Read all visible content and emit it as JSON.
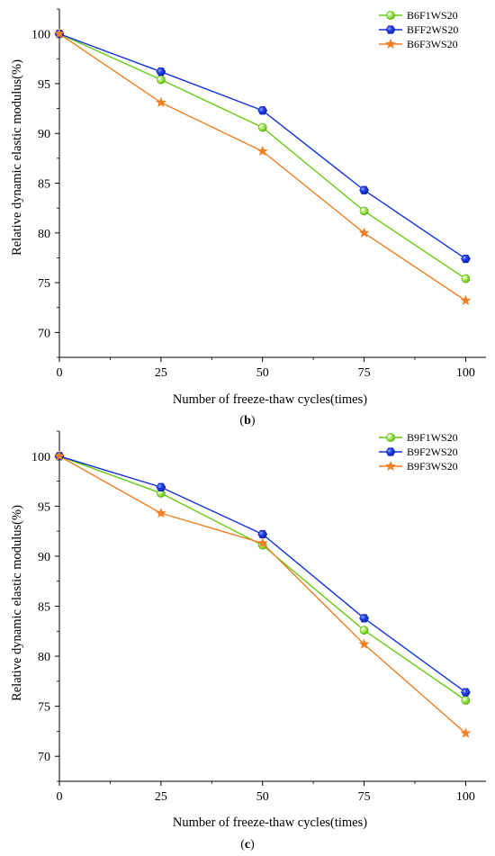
{
  "chart_data": [
    {
      "type": "line",
      "panel_label": "b",
      "xlabel": "Number of freeze-thaw cycles(times)",
      "ylabel": "Relative dynamic elastic modulus(%)",
      "x": [
        0,
        25,
        50,
        75,
        100
      ],
      "xlim": [
        0,
        105
      ],
      "ylim": [
        67.5,
        102.5
      ],
      "xticks": [
        0,
        25,
        50,
        75,
        100
      ],
      "yticks": [
        70,
        75,
        80,
        85,
        90,
        95,
        100
      ],
      "grid": false,
      "legend_position": "top-right",
      "series": [
        {
          "name": "B6F1WS20",
          "color": "#66cc11",
          "marker": "circle",
          "values": [
            100,
            95.4,
            90.6,
            82.2,
            75.4
          ]
        },
        {
          "name": "BFF2WS20",
          "color": "#1133dd",
          "marker": "hexagon",
          "values": [
            100,
            96.2,
            92.3,
            84.3,
            77.4
          ]
        },
        {
          "name": "B6F3WS20",
          "color": "#ee7f22",
          "marker": "star",
          "values": [
            100,
            93.1,
            88.2,
            80.0,
            73.2
          ]
        }
      ]
    },
    {
      "type": "line",
      "panel_label": "c",
      "xlabel": "Number of freeze-thaw cycles(times)",
      "ylabel": "Relative dynamic elastic modulus(%)",
      "x": [
        0,
        25,
        50,
        75,
        100
      ],
      "xlim": [
        0,
        105
      ],
      "ylim": [
        67.5,
        102.5
      ],
      "xticks": [
        0,
        25,
        50,
        75,
        100
      ],
      "yticks": [
        70,
        75,
        80,
        85,
        90,
        95,
        100
      ],
      "grid": false,
      "legend_position": "top-right",
      "series": [
        {
          "name": "B9F1WS20",
          "color": "#66cc11",
          "marker": "circle",
          "values": [
            100,
            96.3,
            91.1,
            82.6,
            75.6
          ]
        },
        {
          "name": "B9F2WS20",
          "color": "#1133dd",
          "marker": "hexagon",
          "values": [
            100,
            96.9,
            92.2,
            83.8,
            76.4
          ]
        },
        {
          "name": "B9F3WS20",
          "color": "#ee7f22",
          "marker": "star",
          "values": [
            100,
            94.3,
            91.3,
            81.2,
            72.3
          ]
        }
      ]
    }
  ]
}
